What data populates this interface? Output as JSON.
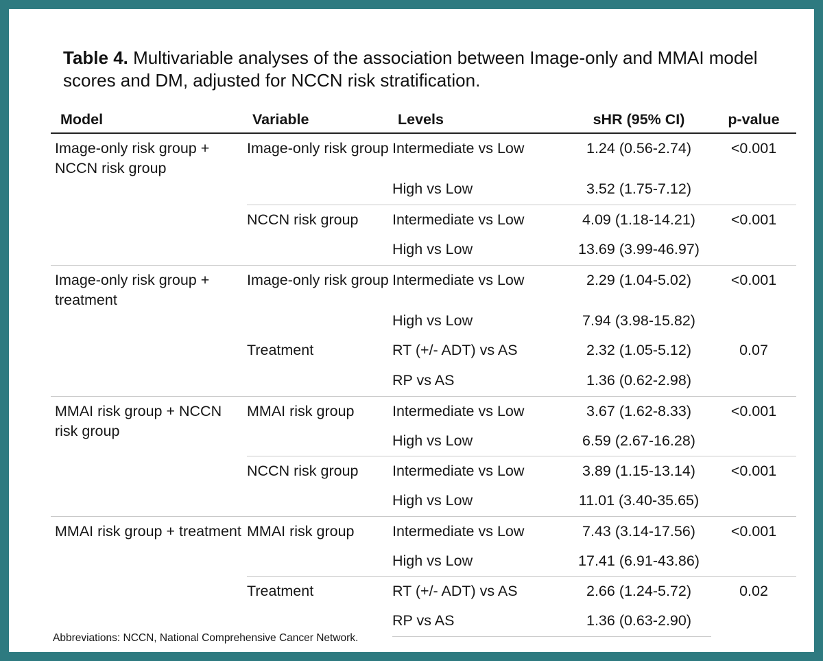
{
  "caption": {
    "label": "Table 4.",
    "text": " Multivariable analyses of the association between Image-only and MMAI model scores and DM, adjusted for NCCN risk stratification."
  },
  "table": {
    "headers": {
      "model": "Model",
      "variable": "Variable",
      "levels": "Levels",
      "shr": "sHR (95% CI)",
      "pvalue": "p-value"
    },
    "groups": [
      {
        "model": "Image-only risk group + NCCN risk group",
        "variables": [
          {
            "name": "Image-only risk group",
            "pvalue": "<0.001",
            "rows": [
              {
                "level": "Intermediate vs Low",
                "shr": "1.24 (0.56-2.74)"
              },
              {
                "level": "High vs Low",
                "shr": "3.52 (1.75-7.12)"
              }
            ]
          },
          {
            "name": "NCCN risk group",
            "pvalue": "<0.001",
            "rows": [
              {
                "level": "Intermediate vs Low",
                "shr": "4.09 (1.18-14.21)"
              },
              {
                "level": "High vs Low",
                "shr": "13.69 (3.99-46.97)"
              }
            ]
          }
        ]
      },
      {
        "model": "Image-only risk group + treatment",
        "variables": [
          {
            "name": "Image-only risk group",
            "pvalue": "<0.001",
            "rows": [
              {
                "level": "Intermediate vs Low",
                "shr": "2.29 (1.04-5.02)"
              },
              {
                "level": "High vs Low",
                "shr": "7.94 (3.98-15.82)"
              }
            ]
          },
          {
            "name": "Treatment",
            "pvalue": "0.07",
            "rows": [
              {
                "level": "RT (+/- ADT) vs AS",
                "shr": "2.32 (1.05-5.12)"
              },
              {
                "level": "RP vs AS",
                "shr": "1.36 (0.62-2.98)"
              }
            ]
          }
        ]
      },
      {
        "model": "MMAI risk group + NCCN risk group",
        "variables": [
          {
            "name": "MMAI risk group",
            "pvalue": "<0.001",
            "rows": [
              {
                "level": "Intermediate vs Low",
                "shr": "3.67 (1.62-8.33)"
              },
              {
                "level": "High vs Low",
                "shr": "6.59 (2.67-16.28)"
              }
            ]
          },
          {
            "name": "NCCN risk group",
            "pvalue": "<0.001",
            "rows": [
              {
                "level": "Intermediate vs Low",
                "shr": "3.89 (1.15-13.14)"
              },
              {
                "level": "High vs Low",
                "shr": "11.01 (3.40-35.65)"
              }
            ]
          }
        ]
      },
      {
        "model": "MMAI risk group + treatment",
        "variables": [
          {
            "name": "MMAI risk group",
            "pvalue": "<0.001",
            "rows": [
              {
                "level": "Intermediate vs Low",
                "shr": "7.43 (3.14-17.56)"
              },
              {
                "level": "High vs Low",
                "shr": "17.41 (6.91-43.86)"
              }
            ]
          },
          {
            "name": "Treatment",
            "pvalue": "0.02",
            "rows": [
              {
                "level": "RT (+/- ADT) vs AS",
                "shr": "2.66 (1.24-5.72)"
              },
              {
                "level": "RP vs AS",
                "shr": "1.36 (0.63-2.90)"
              }
            ]
          }
        ]
      }
    ]
  },
  "footnote": "Abbreviations: NCCN, National Comprehensive Cancer Network.",
  "colors": {
    "frame": "#2e7a80",
    "rule": "#c9c9c9"
  }
}
